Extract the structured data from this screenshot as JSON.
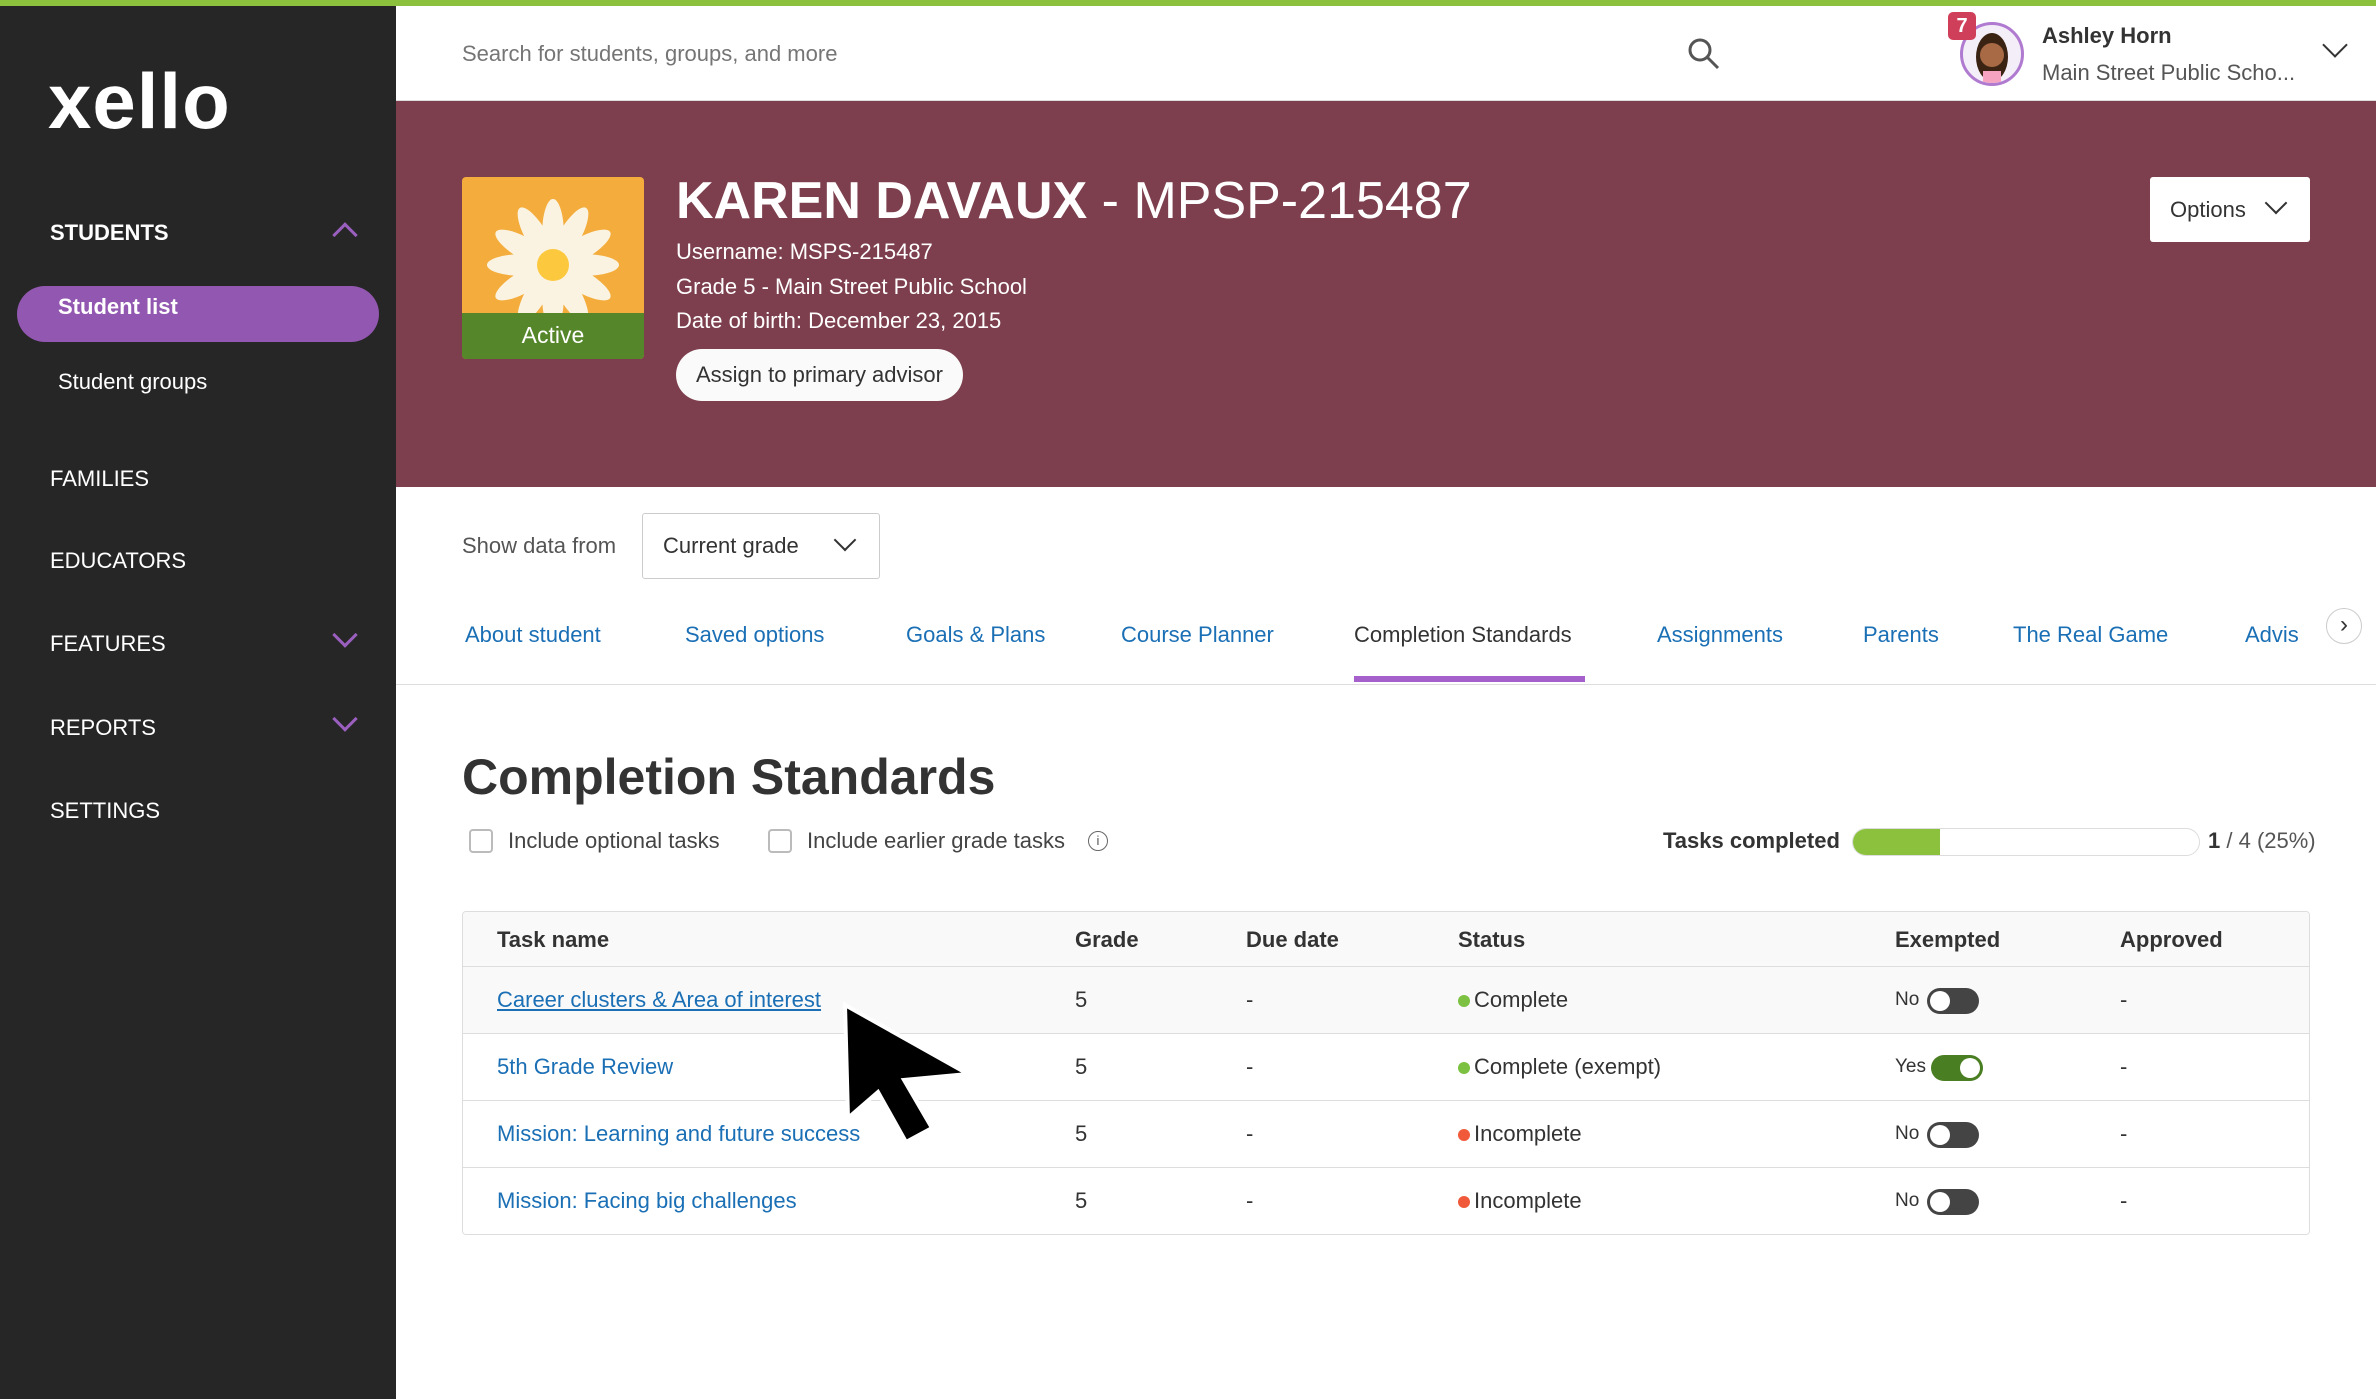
{
  "sidebar": {
    "logo": "xello",
    "items": [
      {
        "label": "STUDENTS",
        "expanded": true,
        "children": [
          {
            "label": "Student list",
            "active": true
          },
          {
            "label": "Student groups"
          }
        ]
      },
      {
        "label": "FAMILIES"
      },
      {
        "label": "EDUCATORS"
      },
      {
        "label": "FEATURES"
      },
      {
        "label": "REPORTS"
      },
      {
        "label": "SETTINGS"
      }
    ]
  },
  "topbar": {
    "search_placeholder": "Search for students, groups, and more",
    "notification_count": "7",
    "user_name": "Ashley Horn",
    "user_school": "Main Street Public Scho..."
  },
  "student": {
    "name": "KAREN DAVAUX",
    "id": "MPSP-215487",
    "separator": "-",
    "username": "Username: MSPS-215487",
    "grade": "Grade 5 - Main Street Public School",
    "dob": "Date of birth: December 23, 2015",
    "status": "Active",
    "assign_button": "Assign to primary advisor",
    "options_button": "Options"
  },
  "filter": {
    "label": "Show data from",
    "value": "Current grade"
  },
  "tabs": [
    "About student",
    "Saved options",
    "Goals & Plans",
    "Course Planner",
    "Completion Standards",
    "Assignments",
    "Parents",
    "The Real Game",
    "Advis"
  ],
  "active_tab": "Completion Standards",
  "section": {
    "title": "Completion Standards",
    "optional_tasks": "Include optional tasks",
    "earlier_tasks": "Include earlier grade tasks",
    "tasks_completed_label": "Tasks completed",
    "tasks_completed_count": "1",
    "tasks_completed_rest": "/ 4 (25%)",
    "progress_percent": 25
  },
  "table": {
    "headers": [
      "Task name",
      "Grade",
      "Due date",
      "Status",
      "Exempted",
      "Approved"
    ],
    "rows": [
      {
        "task": "Career clusters & Area of interest",
        "grade": "5",
        "due": "-",
        "status": "Complete",
        "status_color": "#7cc142",
        "exempted": "No",
        "approved": "-"
      },
      {
        "task": "5th Grade Review",
        "grade": "5",
        "due": "-",
        "status": "Complete (exempt)",
        "status_color": "#7cc142",
        "exempted": "Yes",
        "approved": "-"
      },
      {
        "task": "Mission: Learning and future success",
        "grade": "5",
        "due": "-",
        "status": "Incomplete",
        "status_color": "#f05a3a",
        "exempted": "No",
        "approved": "-"
      },
      {
        "task": "Mission: Facing big challenges",
        "grade": "5",
        "due": "-",
        "status": "Incomplete",
        "status_color": "#f05a3a",
        "exempted": "No",
        "approved": "-"
      }
    ]
  },
  "colors": {
    "brand_green": "#8bc13c",
    "sidebar": "#262626",
    "banner": "#7d3f4d",
    "accent_purple": "#9257b0",
    "link": "#1a6fb5"
  }
}
